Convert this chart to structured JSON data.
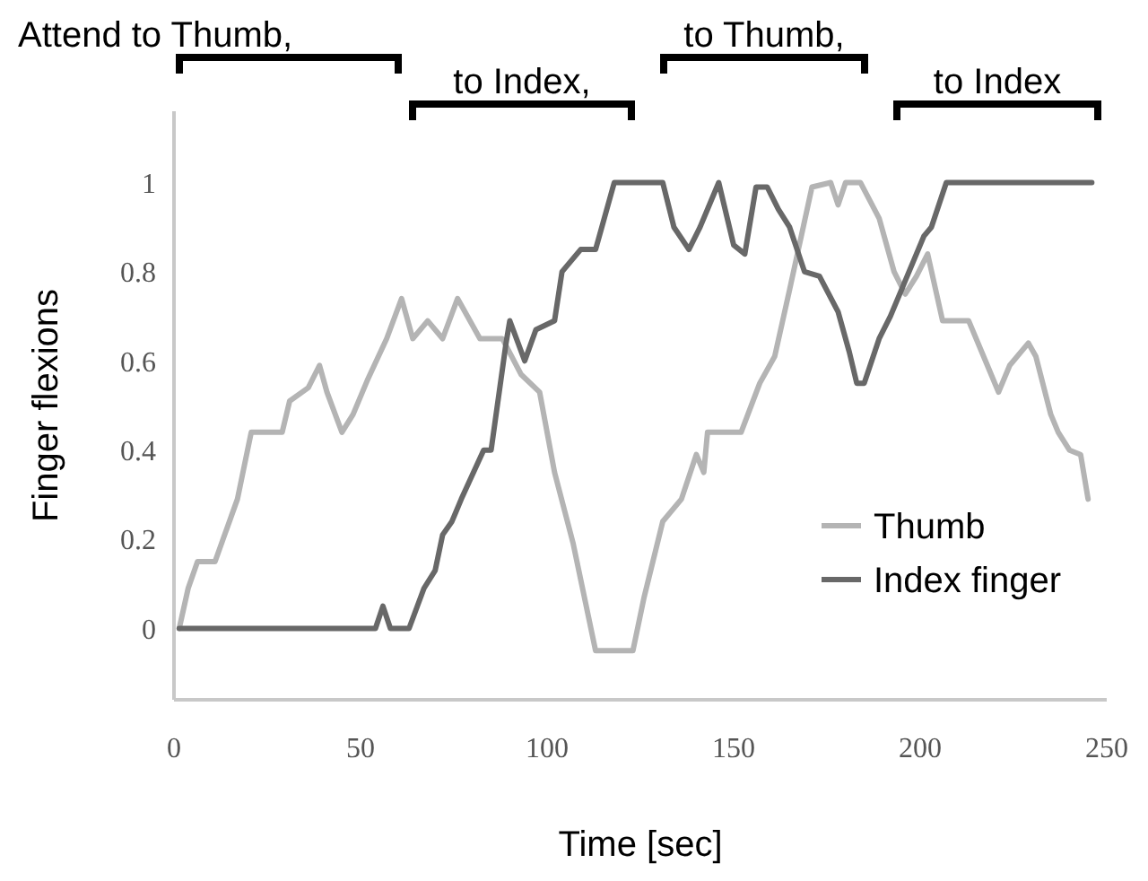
{
  "chart_data": {
    "type": "line",
    "xlabel": "Time [sec]",
    "ylabel": "Finger flexions",
    "xlim": [
      0,
      250
    ],
    "xticks": [
      0,
      50,
      100,
      150,
      200,
      250
    ],
    "ylim": [
      -0.16,
      1.16
    ],
    "yticks": [
      0,
      0.2,
      0.4,
      0.6,
      0.8,
      1
    ],
    "grid": false,
    "legend": "bottom right",
    "marker": "none",
    "line_style": "solid",
    "annotations": [
      "Attend to Thumb,",
      "to Index,",
      "to Thumb,",
      "to Index"
    ],
    "series": [
      {
        "name": "Thumb",
        "color": "#b4b4b4",
        "x": [
          1.4,
          3.8,
          6.3,
          11,
          17,
          20.7,
          29,
          31,
          36,
          39,
          41,
          45,
          48,
          52,
          57,
          61,
          64,
          68,
          72,
          76,
          82,
          88,
          93,
          98,
          102,
          107,
          113,
          123,
          126,
          131,
          136,
          140,
          142,
          143,
          152,
          157,
          161,
          165,
          171,
          176,
          178,
          180,
          184,
          189,
          193,
          196,
          199,
          202,
          206,
          213,
          218,
          221,
          224,
          229,
          231,
          235,
          237,
          240,
          243,
          245
        ],
        "values": [
          0,
          0.09,
          0.15,
          0.15,
          0.29,
          0.44,
          0.44,
          0.51,
          0.54,
          0.59,
          0.53,
          0.44,
          0.48,
          0.56,
          0.65,
          0.74,
          0.65,
          0.69,
          0.65,
          0.74,
          0.65,
          0.65,
          0.57,
          0.53,
          0.35,
          0.19,
          -0.05,
          -0.05,
          0.07,
          0.24,
          0.29,
          0.39,
          0.35,
          0.44,
          0.44,
          0.55,
          0.61,
          0.76,
          0.99,
          1,
          0.95,
          1,
          1,
          0.92,
          0.8,
          0.75,
          0.79,
          0.84,
          0.69,
          0.69,
          0.59,
          0.53,
          0.59,
          0.64,
          0.61,
          0.48,
          0.44,
          0.4,
          0.39,
          0.29
        ]
      },
      {
        "name": "Index finger",
        "color": "#686868",
        "x": [
          1.4,
          54,
          56,
          58,
          63,
          67,
          70,
          72,
          74.5,
          77,
          83,
          85,
          89,
          90,
          94,
          97,
          102,
          104,
          109,
          113,
          118,
          131,
          134,
          138,
          141,
          146,
          150,
          153,
          156,
          159,
          162,
          165,
          169,
          173,
          178,
          181,
          183,
          185,
          189,
          192,
          195,
          197,
          201,
          203,
          207,
          246
        ],
        "values": [
          0,
          0,
          0.05,
          0,
          0,
          0.09,
          0.13,
          0.21,
          0.24,
          0.29,
          0.4,
          0.4,
          0.64,
          0.69,
          0.6,
          0.67,
          0.69,
          0.8,
          0.85,
          0.85,
          1,
          1,
          0.9,
          0.85,
          0.9,
          1,
          0.86,
          0.84,
          0.99,
          0.99,
          0.94,
          0.9,
          0.8,
          0.79,
          0.71,
          0.62,
          0.55,
          0.55,
          0.65,
          0.7,
          0.76,
          0.8,
          0.88,
          0.9,
          1,
          1
        ]
      }
    ]
  }
}
